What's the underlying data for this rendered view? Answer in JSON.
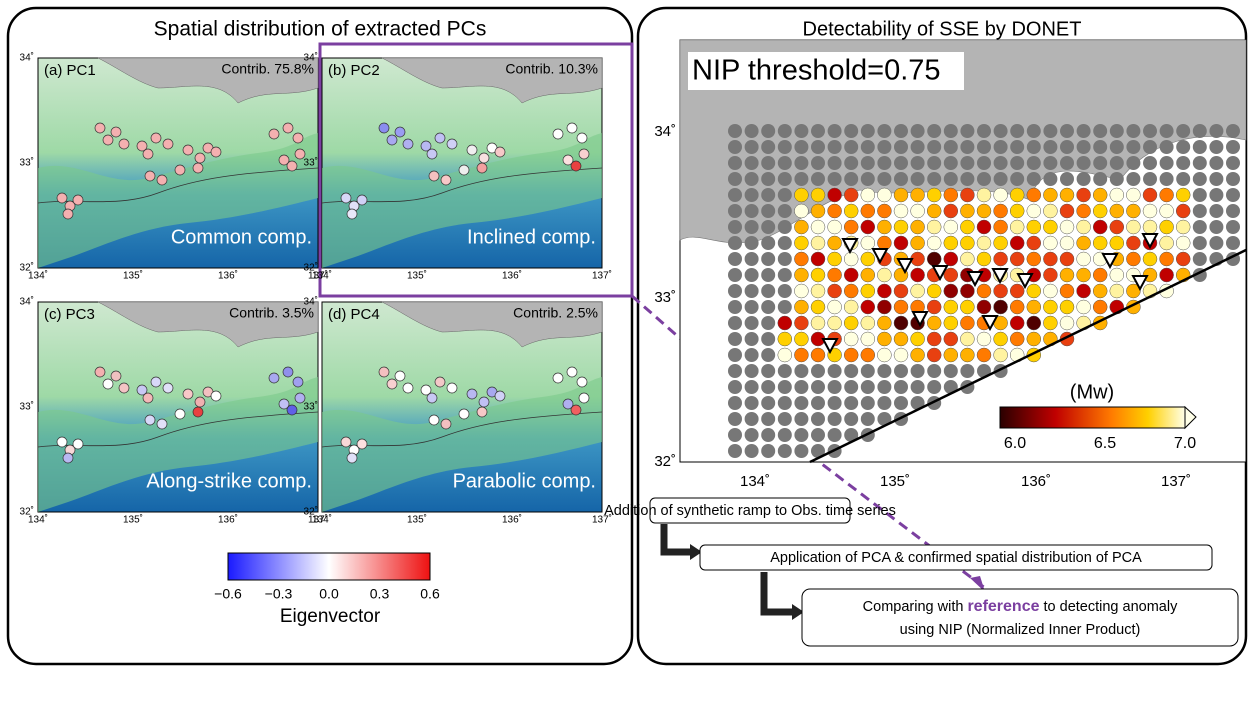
{
  "left_panel": {
    "title": "Spatial distribution of extracted PCs",
    "panels": [
      {
        "label": "(a) PC1",
        "contrib": "Contrib. 75.8%",
        "component": "Common comp."
      },
      {
        "label": "(b) PC2",
        "contrib": "Contrib. 10.3%",
        "component": "Inclined comp."
      },
      {
        "label": "(c) PC3",
        "contrib": "Contrib. 3.5%",
        "component": "Along-strike comp."
      },
      {
        "label": "(d) PC4",
        "contrib": "Contrib. 2.5%",
        "component": "Parabolic comp."
      }
    ],
    "lat_labels": [
      "34˚",
      "33˚",
      "32˚"
    ],
    "lon_labels": [
      "134˚",
      "135˚",
      "136˚",
      "137˚"
    ],
    "colorbar": {
      "ticks": [
        "−0.6",
        "−0.3",
        "0.0",
        "0.3",
        "0.6"
      ],
      "label": "Eigenvector"
    }
  },
  "right_panel": {
    "title": "Detectability of SSE by DONET",
    "threshold": "NIP threshold=0.75",
    "lat_labels": [
      "34˚",
      "33˚",
      "32˚"
    ],
    "lon_labels": [
      "134˚",
      "135˚",
      "136˚",
      "137˚"
    ],
    "colorbar": {
      "title": "(Mw)",
      "ticks": [
        "6.0",
        "6.5",
        "7.0"
      ]
    }
  },
  "flow": {
    "step1": "Addition of synthetic ramp to Obs. time series",
    "step2": "Application of PCA & confirmed spatial distribution of PCA",
    "step3": {
      "before": "Comparing with ",
      "highlight": "reference",
      "after": " to detecting anomaly",
      "line2": "using NIP (Normalized Inner Product)"
    }
  }
}
